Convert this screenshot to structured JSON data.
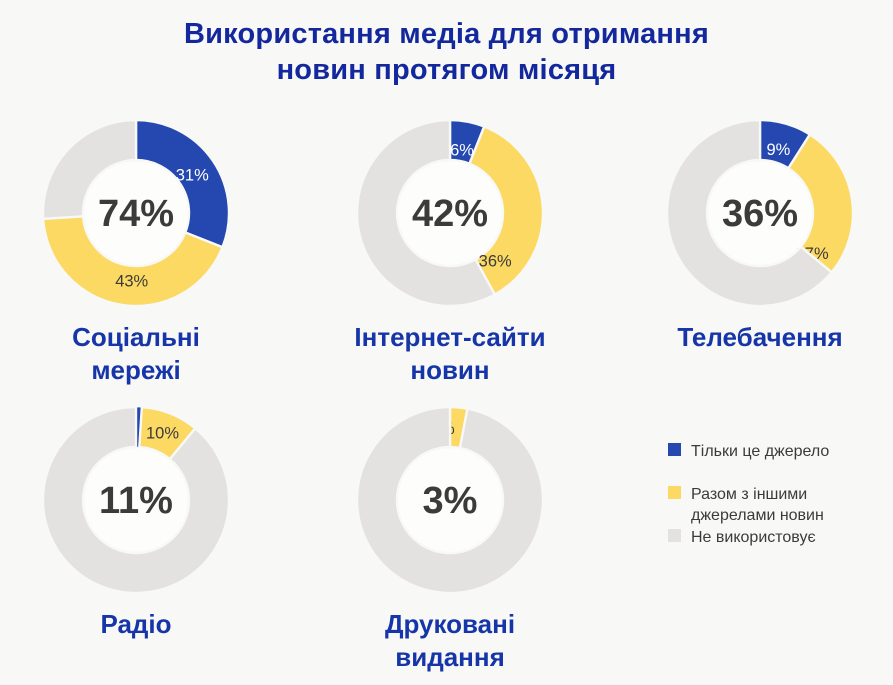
{
  "page": {
    "title_lines": [
      "Використання медіа для отримання",
      "новин протягом місяця"
    ]
  },
  "colors": {
    "only_source_blue": "#2448b0",
    "with_other_yellow": "#fbd962",
    "not_used_gray": "#e4e2e0",
    "title_blue": "#14289e",
    "chart_label_blue": "#1635a8",
    "value_dark": "#3b3b3b",
    "value_light": "#ffffff",
    "hole_white": "#fdfdfb",
    "background": "#f8f8f6"
  },
  "legend": {
    "items": [
      {
        "key": "only_source",
        "label": "Тільки це джерело",
        "lines": [
          "Тільки це джерело"
        ],
        "color": "#2448b0"
      },
      {
        "key": "with_other_sources",
        "label": "Разом з іншими джерелами новин",
        "lines": [
          "Разом з іншими",
          "джерелами новин"
        ],
        "color": "#fbd962"
      },
      {
        "key": "not_used",
        "label": "Не використовує",
        "lines": [
          "Не використовує"
        ],
        "color": "#e4e2e0"
      }
    ]
  },
  "chart_data": {
    "type": "pie",
    "subtype": "donut-small-multiples",
    "title": "Використання медіа для отримання новин протягом місяця",
    "unit": "%",
    "legend": [
      "Тільки це джерело",
      "Разом з іншими джерелами новин",
      "Не використовує"
    ],
    "charts": [
      {
        "label": "Соціальні мережі",
        "label_lines": [
          "Соціальні",
          "мережі"
        ],
        "total": "74%",
        "total_value": 74,
        "only_source": 31,
        "with_other_sources": 43,
        "not_used": 26
      },
      {
        "label": "Інтернет-сайти новин",
        "label_lines": [
          "Інтернет-сайти",
          "новин"
        ],
        "total": "42%",
        "total_value": 42,
        "only_source": 6,
        "with_other_sources": 36,
        "not_used": 58
      },
      {
        "label": "Телебачення",
        "label_lines": [
          "Телебачення"
        ],
        "total": "36%",
        "total_value": 36,
        "only_source": 9,
        "with_other_sources": 27,
        "not_used": 64
      },
      {
        "label": "Радіо",
        "label_lines": [
          "Радіо"
        ],
        "total": "11%",
        "total_value": 11,
        "only_source": 1,
        "with_other_sources": 10,
        "not_used": 89
      },
      {
        "label": "Друковані видання",
        "label_lines": [
          "Друковані",
          "видання"
        ],
        "total": "3%",
        "total_value": 3,
        "only_source": 0,
        "with_other_sources": 3,
        "not_used": 97
      }
    ]
  }
}
